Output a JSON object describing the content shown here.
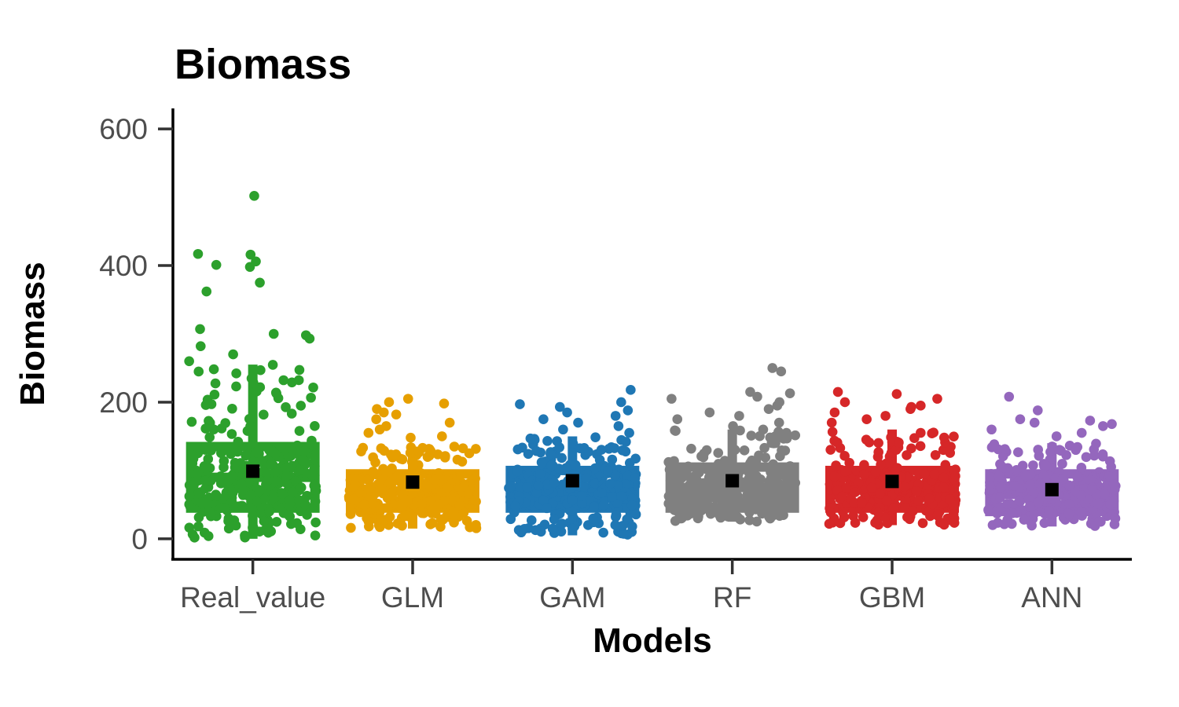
{
  "chart_data": {
    "type": "boxplot",
    "title": "Biomass",
    "xlabel": "Models",
    "ylabel": "Biomass",
    "ylim": [
      -30,
      630
    ],
    "yticks": [
      0,
      200,
      400,
      600
    ],
    "grid": false,
    "legend": "none",
    "categories": [
      "Real_value",
      "GLM",
      "GAM",
      "RF",
      "GBM",
      "ANN"
    ],
    "colors": [
      "#2ca02c",
      "#e69f00",
      "#1f77b4",
      "#808080",
      "#d62728",
      "#9467bd"
    ],
    "mean_color": "#000000",
    "series": [
      {
        "category": "Real_value",
        "q1": 45,
        "median": 90,
        "q3": 135,
        "whisker_low": 0,
        "whisker_high": 255,
        "mean": 99,
        "outliers": [
          502,
          417,
          416,
          406,
          401,
          398,
          375,
          362,
          307,
          300,
          298,
          293,
          282,
          270,
          260
        ]
      },
      {
        "category": "GLM",
        "q1": 45,
        "median": 70,
        "q3": 95,
        "whisker_low": 15,
        "whisker_high": 135,
        "mean": 83,
        "outliers": [
          205,
          200,
          198,
          190,
          185,
          182,
          175,
          170,
          165,
          160,
          155,
          150,
          148
        ]
      },
      {
        "category": "GAM",
        "q1": 45,
        "median": 75,
        "q3": 100,
        "whisker_low": 5,
        "whisker_high": 150,
        "mean": 85,
        "outliers": [
          218,
          200,
          197,
          193,
          188,
          185,
          180,
          175,
          170,
          165,
          160,
          155
        ]
      },
      {
        "category": "RF",
        "q1": 45,
        "median": 75,
        "q3": 105,
        "whisker_low": 25,
        "whisker_high": 160,
        "mean": 85,
        "outliers": [
          250,
          245,
          215,
          213,
          208,
          205,
          200,
          195,
          190,
          185,
          180,
          175,
          170,
          165
        ]
      },
      {
        "category": "GBM",
        "q1": 45,
        "median": 75,
        "q3": 100,
        "whisker_low": 20,
        "whisker_high": 160,
        "mean": 84,
        "outliers": [
          215,
          212,
          205,
          200,
          195,
          193,
          190,
          185,
          180,
          175,
          170
        ]
      },
      {
        "category": "ANN",
        "q1": 40,
        "median": 65,
        "q3": 95,
        "whisker_low": 18,
        "whisker_high": 140,
        "mean": 72,
        "outliers": [
          208,
          188,
          175,
          173,
          170,
          168,
          165,
          160,
          155,
          150
        ]
      }
    ]
  }
}
